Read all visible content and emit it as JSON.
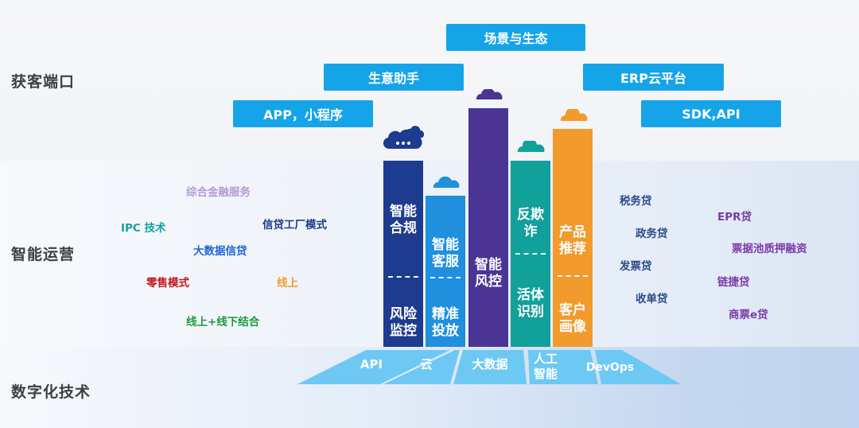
{
  "sections": {
    "acquisition": "获客端口",
    "operations": "智能运营",
    "technology": "数字化技术"
  },
  "channels": {
    "scene": "场景与生态",
    "assistant": "生意助手",
    "erp": "ERP云平台",
    "app": "APP，小程序",
    "sdk": "SDK,API"
  },
  "left_tags": [
    {
      "text": "综合金融服务",
      "color": "#b59ad6"
    },
    {
      "text": "IPC 技术",
      "color": "#12a3a0"
    },
    {
      "text": "信贷工厂模式",
      "color": "#1f3a8a"
    },
    {
      "text": "大数据信贷",
      "color": "#1e63d6"
    },
    {
      "text": "零售模式",
      "color": "#c4161c"
    },
    {
      "text": "线上",
      "color": "#f39a2d"
    },
    {
      "text": "线上+线下结合",
      "color": "#1a9b3c"
    }
  ],
  "right_tags": [
    {
      "text": "税务贷",
      "color": "#2b4a8a"
    },
    {
      "text": "EPR贷",
      "color": "#7b3aa8"
    },
    {
      "text": "政务贷",
      "color": "#2b4a8a"
    },
    {
      "text": "票据池质押融资",
      "color": "#7b3aa8"
    },
    {
      "text": "发票贷",
      "color": "#2b4a8a"
    },
    {
      "text": "链捷贷",
      "color": "#7b3aa8"
    },
    {
      "text": "收单贷",
      "color": "#2b4a8a"
    },
    {
      "text": "商票e贷",
      "color": "#7b3aa8"
    }
  ],
  "pillars": [
    {
      "top": "智能\n合规",
      "bottom": "风险\n监控",
      "color": "#1d3b8f",
      "cloud": "#1d3b8f"
    },
    {
      "top": "智能\n客服",
      "bottom": "精准\n投放",
      "color": "#1f8fde",
      "cloud": "#1f8fde"
    },
    {
      "top": "智能\n风控",
      "bottom": "",
      "color": "#4a3595",
      "cloud": "#4a3595"
    },
    {
      "top": "反欺\n诈",
      "bottom": "活体\n识别",
      "color": "#12a09b",
      "cloud": "#12a09b"
    },
    {
      "top": "产品\n推荐",
      "bottom": "客户\n画像",
      "color": "#f39a2d",
      "cloud": "#f39a2d"
    }
  ],
  "tech": [
    "API",
    "云",
    "大数据",
    "人工\n智能",
    "DevOps"
  ],
  "colors": {
    "pill": "#16a4e8",
    "base": "#5cc2f2"
  }
}
